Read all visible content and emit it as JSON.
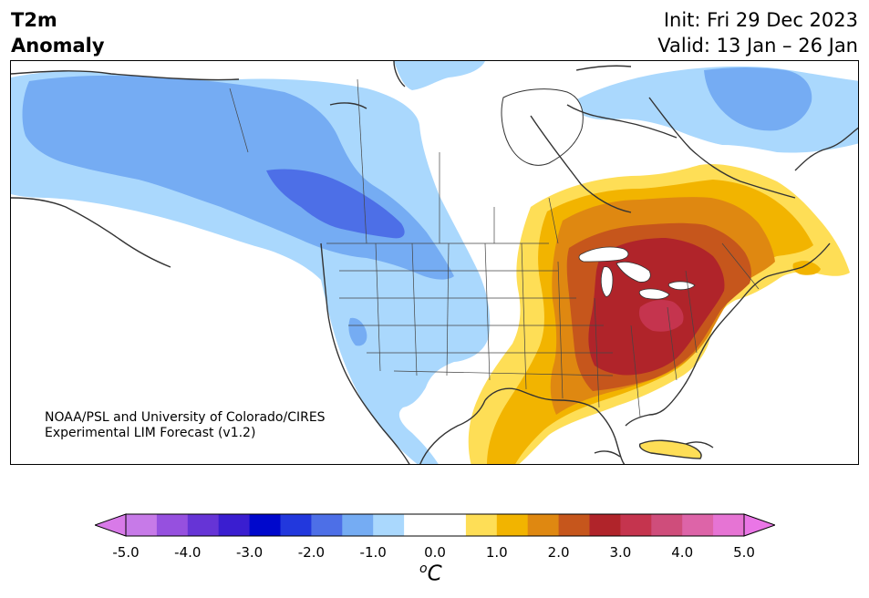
{
  "header": {
    "title_line1": "T2m",
    "title_line2": "Anomaly",
    "init": "Init: Fri 29 Dec 2023",
    "valid": "Valid: 13 Jan – 26 Jan"
  },
  "credit": {
    "line1": "NOAA/PSL and University of Colorado/CIRES",
    "line2": "Experimental LIM Forecast (v1.2)"
  },
  "colorbar": {
    "unit_base": "C",
    "unit_sup": "o",
    "ticks": [
      "-5.0",
      "-4.0",
      "-3.0",
      "-2.0",
      "-1.0",
      "0.0",
      "1.0",
      "2.0",
      "3.0",
      "4.0",
      "5.0"
    ],
    "tick_values": [
      -5,
      -4,
      -3,
      -2,
      -1,
      0,
      1,
      2,
      3,
      4,
      5
    ],
    "range": [
      -5.5,
      5.5
    ],
    "colors": [
      "#c77ae8",
      "#9650df",
      "#6634d6",
      "#3a1ed0",
      "#0008cc",
      "#2238dd",
      "#4d6fe7",
      "#75acf3",
      "#aad8fd",
      "#ffffff",
      "#ffffff",
      "#fede56",
      "#f2b400",
      "#df8811",
      "#c6561c",
      "#b0242a",
      "#c5344e",
      "#cf4d7b",
      "#dd64a8",
      "#e674d4"
    ],
    "over_color": "#ea76e6",
    "under_color": "#d87ae8"
  },
  "map": {
    "land_color": "#ffffff",
    "coast_color": "#333333",
    "anomaly_levels": {
      "cold_light": -1.0,
      "cold_medium": -1.5,
      "cold_strong": -2.0,
      "warm_light": 1.0,
      "warm_medium": 1.5,
      "warm_strong": 2.0,
      "warm_hot": 3.0,
      "warm_peak": 3.5
    }
  }
}
